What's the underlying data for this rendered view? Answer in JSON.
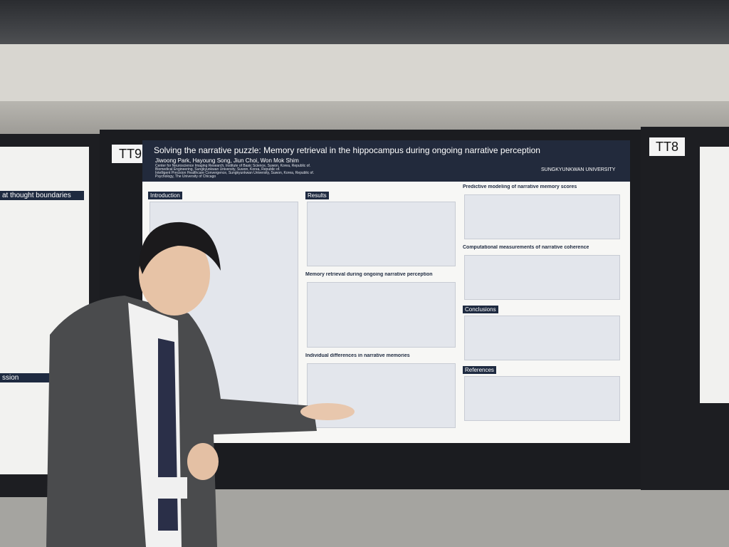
{
  "booths": [
    "TT9",
    "TT8"
  ],
  "poster": {
    "title": "Solving the narrative puzzle: Memory retrieval in the hippocampus during ongoing narrative perception",
    "authors": "Jiwoong Park, Hayoung Song, Jiun Choi, Won Mok Shim",
    "affiliations": [
      "Center for Neuroscience Imaging Research, Institute of Basic Science, Suwon, Korea, Republic of.",
      "Biomedical Engineering, Sungkyunkwan University, Suwon, Korea, Republic of.",
      "Intelligent Precision Healthcare Convergence, Sungkyunkwan University, Suwon, Korea, Republic of.",
      "Psychology, The University of Chicago"
    ],
    "logo": "SUNGKYUNKWAN UNIVERSITY",
    "left_column": [
      "Introduction"
    ],
    "middle_column": [
      "Results",
      "Memory retrieval during ongoing narrative perception",
      "Individual differences in narrative memories"
    ],
    "right_column": [
      "Predictive modeling of narrative memory scores",
      "Computational measurements of narrative coherence",
      "Conclusions",
      "References"
    ]
  },
  "left_poster": {
    "headings": [
      "at thought boundaries",
      "ssion"
    ]
  }
}
